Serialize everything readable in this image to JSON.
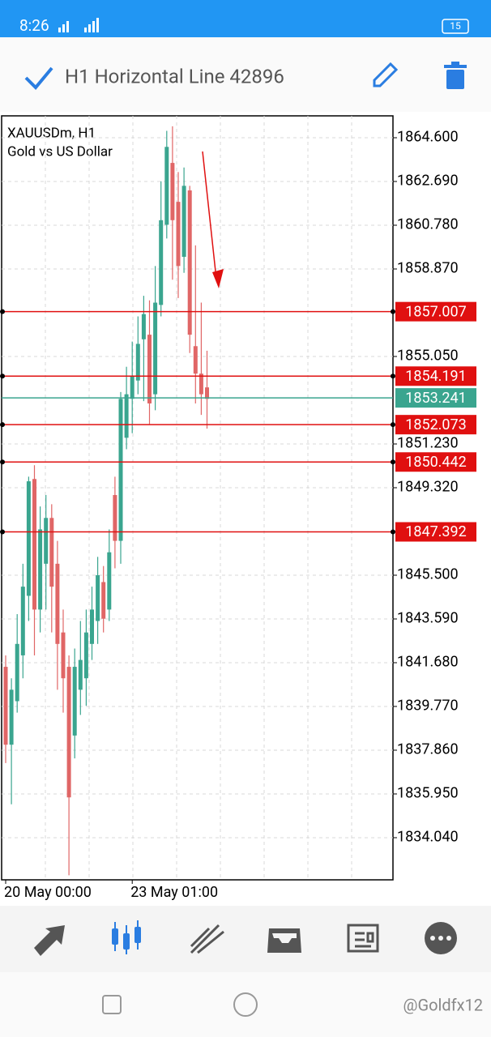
{
  "status_bar": {
    "time": "8:26",
    "battery": "15"
  },
  "toolbar": {
    "title": "H1 Horizontal Line 42896"
  },
  "chart_data": {
    "type": "candlestick",
    "symbol": "XAUUSDm, H1",
    "description": "Gold vs US Dollar",
    "categories": [
      "20 May 00:00",
      null,
      null,
      null,
      null,
      null,
      null,
      null,
      null,
      null,
      null,
      null,
      null,
      null,
      null,
      null,
      null,
      null,
      null,
      null,
      null,
      null,
      "23 May 01:00",
      null,
      null,
      null,
      null,
      null,
      null,
      null,
      null,
      null,
      null,
      null,
      null,
      null
    ],
    "open": [
      1841.5,
      1838.1,
      1840,
      1842,
      1844.6,
      1849.7,
      1844,
      1846,
      1848,
      1846,
      1843,
      1841.5,
      1838.5,
      1840.5,
      1841,
      1842.5,
      1843.5,
      1845.2,
      1844,
      1849,
      1847,
      1851.5,
      1853.2,
      1854,
      1855.8,
      1856,
      1853.4,
      1857.3,
      1860.8,
      1863.5,
      1861.8,
      1859.4,
      1862.3,
      1855.5,
      1854.3,
      1853.7
    ],
    "high": [
      1842,
      1841,
      1843.8,
      1846,
      1849.8,
      1850.3,
      1848.5,
      1849,
      1848.6,
      1847,
      1844,
      1842,
      1842.3,
      1843.5,
      1844,
      1845,
      1846.3,
      1845.9,
      1847.5,
      1849.8,
      1853.5,
      1854.6,
      1855.7,
      1856.8,
      1857.7,
      1857.5,
      1859,
      1862.7,
      1864.9,
      1865.1,
      1863.1,
      1863.3,
      1862.5,
      1859.9,
      1857.4,
      1855.3
    ],
    "low": [
      1837.3,
      1835.5,
      1839.5,
      1841,
      1843.5,
      1842,
      1843,
      1844,
      1843,
      1840.5,
      1839.5,
      1832.4,
      1837.5,
      1839.4,
      1839.8,
      1841.8,
      1842.5,
      1843,
      1843.5,
      1845.8,
      1846,
      1851,
      1851.7,
      1853.4,
      1853.1,
      1852.1,
      1852.7,
      1856.8,
      1860.2,
      1858.4,
      1857.6,
      1858.7,
      1855.2,
      1853,
      1852.5,
      1851.9
    ],
    "close": [
      1838.1,
      1840.5,
      1842.5,
      1845,
      1849.6,
      1844,
      1847.5,
      1848,
      1845,
      1842.5,
      1841,
      1835.8,
      1841.5,
      1841.8,
      1843,
      1844,
      1845.5,
      1843.6,
      1846.5,
      1847,
      1853.2,
      1853.4,
      1854.2,
      1855.6,
      1856.9,
      1853,
      1857.4,
      1861,
      1864.2,
      1861,
      1859,
      1862.5,
      1856,
      1854.3,
      1853.4,
      1853.2
    ],
    "up_color": "#3aa58f",
    "down_color": "#e06666",
    "ylim": [
      1832.2,
      1865.555
    ],
    "yticks": [
      {
        "value": 1864.6,
        "label": "1864.600"
      },
      {
        "value": 1862.69,
        "label": "1862.690"
      },
      {
        "value": 1860.78,
        "label": "1860.780"
      },
      {
        "value": 1858.87,
        "label": "1858.870"
      },
      {
        "value": 1855.05,
        "label": "1855.050"
      },
      {
        "value": 1851.23,
        "label": "1851.230"
      },
      {
        "value": 1849.32,
        "label": "1849.320"
      },
      {
        "value": 1845.5,
        "label": "1845.500"
      },
      {
        "value": 1843.59,
        "label": "1843.590"
      },
      {
        "value": 1841.68,
        "label": "1841.680"
      },
      {
        "value": 1839.77,
        "label": "1839.770"
      },
      {
        "value": 1837.86,
        "label": "1837.860"
      },
      {
        "value": 1835.95,
        "label": "1835.950"
      },
      {
        "value": 1834.04,
        "label": "1834.040"
      }
    ],
    "levels": [
      1857.007,
      1854.191,
      1852.073,
      1850.442,
      1847.392
    ],
    "level_color": "#e01010",
    "current_price": 1853.241,
    "current_color": "#3aa58f",
    "grid": true
  },
  "watermark": "@Goldfx12"
}
